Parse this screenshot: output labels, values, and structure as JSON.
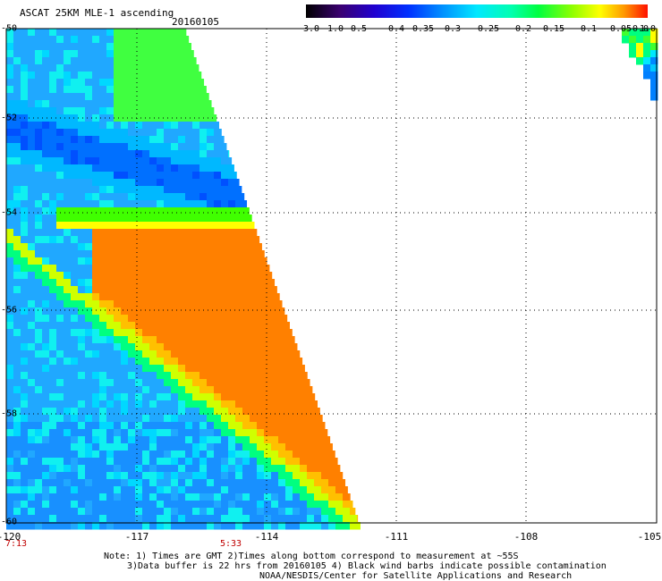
{
  "header": {
    "title": "ASCAT 25KM MLE-1 ascending",
    "date": "20160105"
  },
  "colorbar": {
    "labels": [
      "-3.0",
      "-1.0",
      "-0.5",
      "-0.4",
      "-0.35",
      "-0.3",
      "-0.25",
      "-0.2",
      "-0.15",
      "-0.1",
      "-0.05",
      "0.0",
      "1.0"
    ],
    "colors": [
      "#1a0026",
      "#3a0070",
      "#2a00c8",
      "#0a30ff",
      "#0088ff",
      "#00c8ff",
      "#00ffe0",
      "#00ff70",
      "#40ff00",
      "#b0ff00",
      "#ffff00",
      "#ff9000",
      "#ff2000"
    ]
  },
  "map": {
    "y_labels": [
      "-50",
      "-52",
      "-54",
      "-56",
      "-58",
      "-60"
    ],
    "x_labels": [
      "-120",
      "-117",
      "-114",
      "-111",
      "-108",
      "-105"
    ],
    "time_labels": [
      {
        "text": "7:13",
        "lon": -120
      },
      {
        "text": "5:33",
        "lon": -115
      }
    ],
    "lon_range": [
      -120,
      -105
    ],
    "lat_range": [
      -60,
      -50
    ]
  },
  "footer": {
    "note1": "Note: 1) Times are GMT 2)Times along bottom correspond to measurement at ~55S",
    "note2": "3)Data buffer is 22 hrs from 20160105 4) Black wind barbs indicate possible contamination",
    "credit": "NOAA/NESDIS/Center for Satellite Applications and Research"
  }
}
